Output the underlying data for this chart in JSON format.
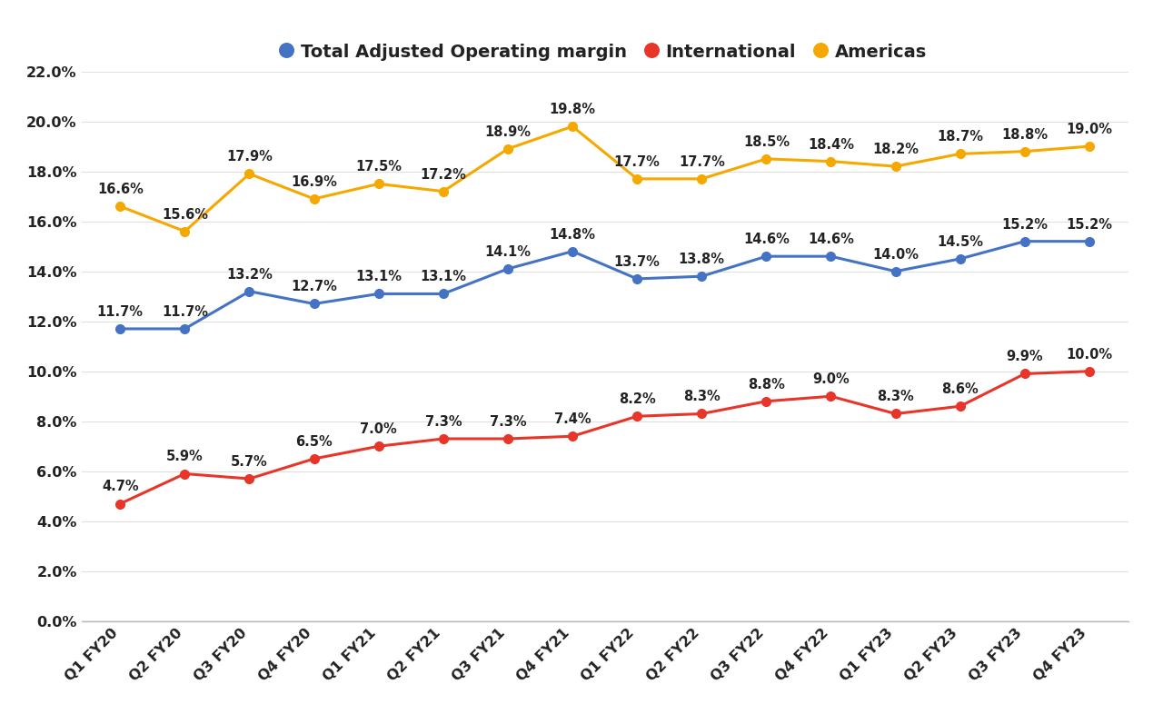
{
  "categories": [
    "Q1 FY20",
    "Q2 FY20",
    "Q3 FY20",
    "Q4 FY20",
    "Q1 FY21",
    "Q2 FY21",
    "Q3 FY21",
    "Q4 FY21",
    "Q1 FY22",
    "Q2 FY22",
    "Q3 FY22",
    "Q4 FY22",
    "Q1 FY23",
    "Q2 FY23",
    "Q3 FY23",
    "Q4 FY23"
  ],
  "total_adjusted": [
    11.7,
    11.7,
    13.2,
    12.7,
    13.1,
    13.1,
    14.1,
    14.8,
    13.7,
    13.8,
    14.6,
    14.6,
    14.0,
    14.5,
    15.2,
    15.2
  ],
  "international": [
    4.7,
    5.9,
    5.7,
    6.5,
    7.0,
    7.3,
    7.3,
    7.4,
    8.2,
    8.3,
    8.8,
    9.0,
    8.3,
    8.6,
    9.9,
    10.0
  ],
  "americas": [
    16.6,
    15.6,
    17.9,
    16.9,
    17.5,
    17.2,
    18.9,
    19.8,
    17.7,
    17.7,
    18.5,
    18.4,
    18.2,
    18.7,
    18.8,
    19.0
  ],
  "total_color": "#4472C4",
  "international_color": "#E8352A",
  "americas_color": "#F5A800",
  "ylim": [
    0.0,
    22.0
  ],
  "yticks": [
    0.0,
    2.0,
    4.0,
    6.0,
    8.0,
    10.0,
    12.0,
    14.0,
    16.0,
    18.0,
    20.0,
    22.0
  ],
  "background_color": "#ffffff",
  "legend_labels": [
    "Total Adjusted Operating margin",
    "International",
    "Americas"
  ],
  "marker_size": 7,
  "line_width": 2.2,
  "label_fontsize": 10.5,
  "tick_fontsize": 11.5,
  "legend_fontsize": 14
}
